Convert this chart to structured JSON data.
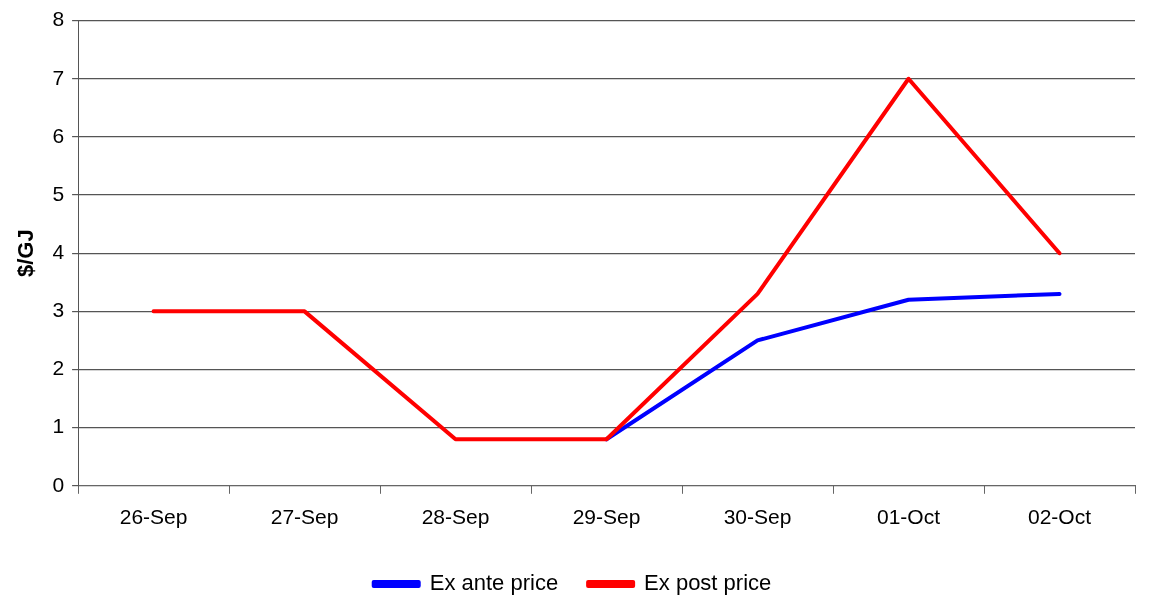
{
  "chart_data": {
    "type": "line",
    "ylabel": "$/GJ",
    "categories": [
      "26-Sep",
      "27-Sep",
      "28-Sep",
      "29-Sep",
      "30-Sep",
      "01-Oct",
      "02-Oct"
    ],
    "series": [
      {
        "name": "Ex ante price",
        "color": "#0000ff",
        "values": [
          null,
          null,
          null,
          0.8,
          2.5,
          3.2,
          3.3
        ]
      },
      {
        "name": "Ex post price",
        "color": "#ff0000",
        "values": [
          3,
          3,
          0.8,
          0.8,
          3.3,
          7,
          4
        ]
      }
    ],
    "ylim": [
      0,
      8
    ],
    "yticks": [
      0,
      1,
      2,
      3,
      4,
      5,
      6,
      7,
      8
    ],
    "grid": "y",
    "legend": "bottom",
    "marker": "none",
    "line_style": "solid"
  }
}
